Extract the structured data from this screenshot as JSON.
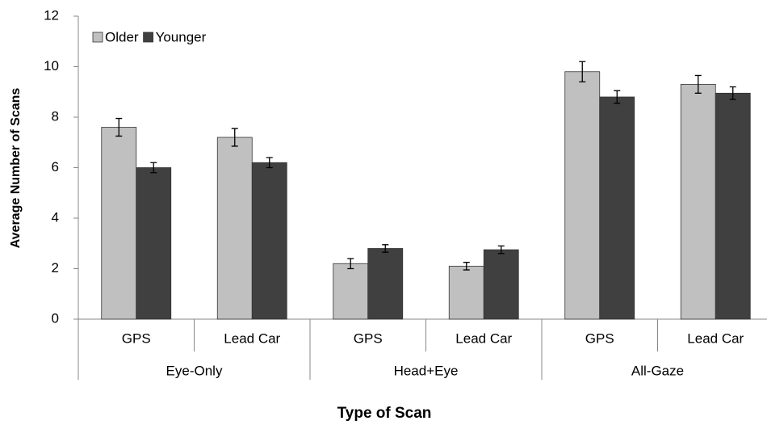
{
  "chart_data": {
    "type": "bar",
    "xlabel": "Type of Scan",
    "ylabel": "Average Number of Scans",
    "categories": [
      "GPS",
      "Lead Car",
      "GPS",
      "Lead Car",
      "GPS",
      "Lead Car"
    ],
    "groups": [
      "Eye-Only",
      "Head+Eye",
      "All-Gaze"
    ],
    "series": [
      {
        "name": "Older",
        "color": "#c0c0c0",
        "values": [
          7.6,
          7.2,
          2.2,
          2.1,
          9.8,
          9.3
        ],
        "errors": [
          0.35,
          0.35,
          0.2,
          0.15,
          0.4,
          0.35
        ]
      },
      {
        "name": "Younger",
        "color": "#404040",
        "values": [
          6.0,
          6.2,
          2.8,
          2.75,
          8.8,
          8.95
        ],
        "errors": [
          0.2,
          0.2,
          0.15,
          0.15,
          0.25,
          0.25
        ]
      }
    ],
    "ylim": [
      0,
      12
    ],
    "yticks": [
      0,
      2,
      4,
      6,
      8,
      10,
      12
    ],
    "legend": "upper left"
  }
}
